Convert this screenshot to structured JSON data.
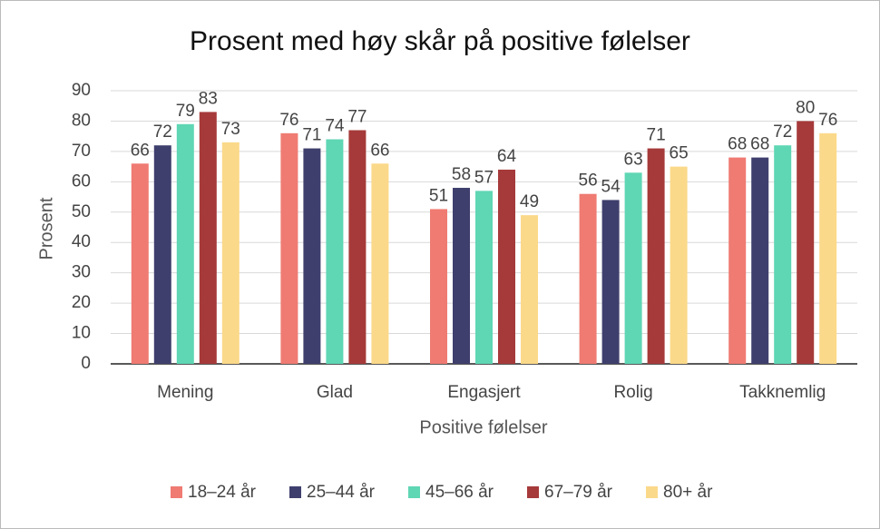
{
  "chart_data": {
    "type": "bar",
    "title": "Prosent med høy skår på positive følelser",
    "x_label": "Positive følelser",
    "y_label": "Prosent",
    "categories": [
      "Mening",
      "Glad",
      "Engasjert",
      "Rolig",
      "Takknemlig"
    ],
    "series": [
      {
        "name": "18–24 år",
        "color": "#ef7b72",
        "values": [
          66,
          76,
          51,
          56,
          68
        ]
      },
      {
        "name": "25–44 år",
        "color": "#3f3f6e",
        "values": [
          72,
          71,
          58,
          54,
          68
        ]
      },
      {
        "name": "45–66 år",
        "color": "#5fd6b4",
        "values": [
          79,
          74,
          57,
          63,
          72
        ]
      },
      {
        "name": "67–79 år",
        "color": "#a63a3a",
        "values": [
          83,
          77,
          64,
          71,
          80
        ]
      },
      {
        "name": "80+ år",
        "color": "#fbd98a",
        "values": [
          73,
          66,
          49,
          65,
          76
        ]
      }
    ],
    "ylim": [
      0,
      90
    ],
    "yticks": [
      0,
      10,
      20,
      30,
      40,
      50,
      60,
      70,
      80,
      90
    ],
    "grid": true,
    "legend": "bottom"
  }
}
